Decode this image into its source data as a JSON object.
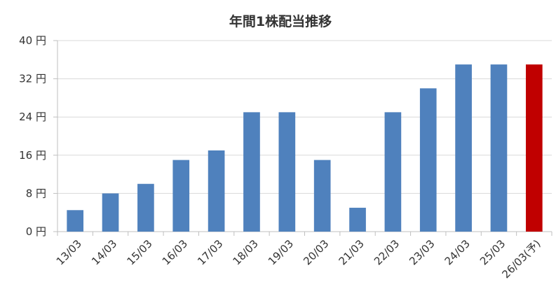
{
  "chart_data": {
    "type": "bar",
    "title": "年間1株配当推移",
    "xlabel": "",
    "ylabel": "",
    "y_unit": "円",
    "ylim": [
      0,
      40
    ],
    "yticks": [
      0,
      8,
      16,
      24,
      32,
      40
    ],
    "ytick_labels": [
      "0 円",
      "8 円",
      "16 円",
      "24 円",
      "32 円",
      "40 円"
    ],
    "grid": true,
    "legend": "none",
    "categories": [
      "13/03",
      "14/03",
      "15/03",
      "16/03",
      "17/03",
      "18/03",
      "19/03",
      "20/03",
      "21/03",
      "22/03",
      "23/03",
      "24/03",
      "25/03",
      "26/03(予)"
    ],
    "values": [
      4.5,
      8,
      10,
      15,
      17,
      25,
      25,
      15,
      5,
      25,
      30,
      35,
      35,
      35
    ],
    "colors": {
      "actual": "#4f81bd",
      "forecast": "#c00000"
    },
    "forecast_index": 13
  }
}
